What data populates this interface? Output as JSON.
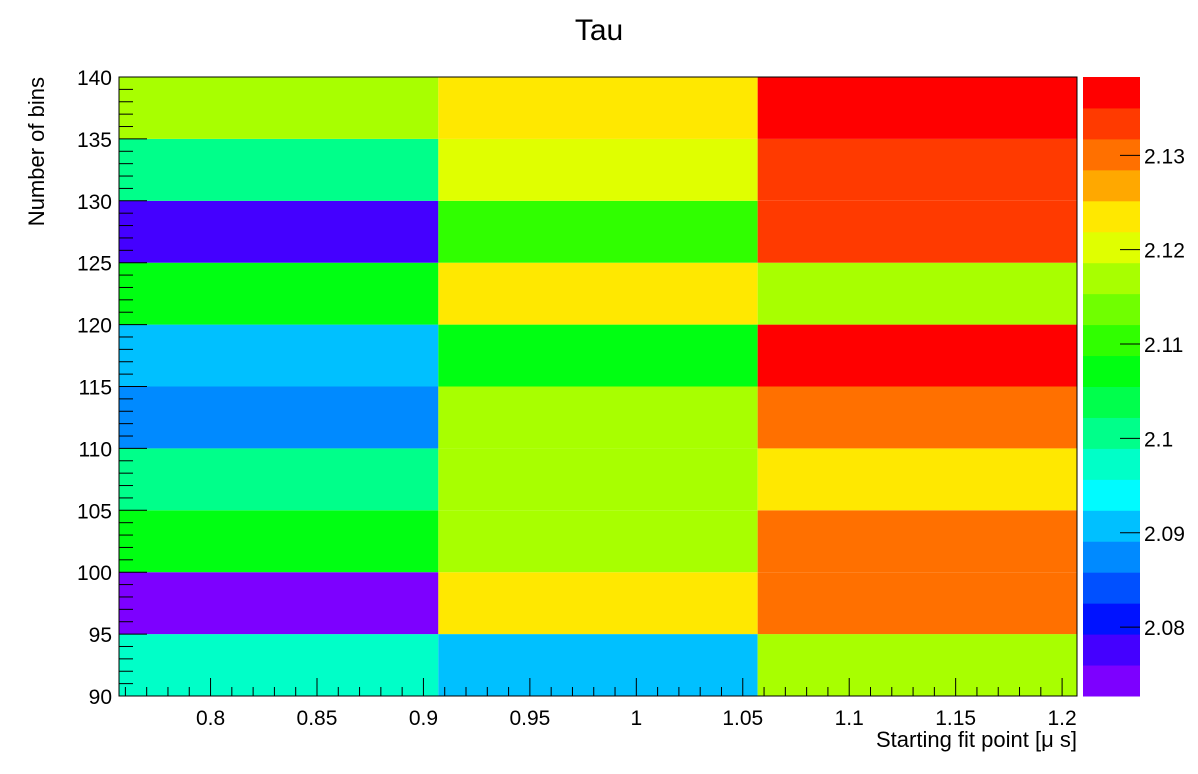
{
  "chart_data": {
    "type": "heatmap",
    "title": "Tau",
    "xlabel": "Starting fit point [μ s]",
    "ylabel": "Number of bins",
    "x_ticks": [
      "0.8",
      "0.85",
      "0.9",
      "0.95",
      "1",
      "1.05",
      "1.1",
      "1.15",
      "1.2"
    ],
    "y_ticks": [
      "90",
      "95",
      "100",
      "105",
      "110",
      "115",
      "120",
      "125",
      "130",
      "135",
      "140"
    ],
    "xlim": [
      0.757,
      1.207
    ],
    "ylim": [
      90,
      140
    ],
    "x_bin_edges": [
      0.757,
      0.907,
      1.057,
      1.207
    ],
    "y_bin_edges": [
      90,
      95,
      100,
      105,
      110,
      115,
      120,
      125,
      130,
      135,
      140
    ],
    "z_range": [
      2.0727,
      2.1383
    ],
    "z_ticks": [
      "2.08",
      "2.09",
      "2.1",
      "2.11",
      "2.12",
      "2.13"
    ],
    "z_tick_values": [
      2.08,
      2.09,
      2.1,
      2.11,
      2.12,
      2.13
    ],
    "palette": [
      "#7d00ff",
      "#4400ff",
      "#0012ff",
      "#0050ff",
      "#008aff",
      "#00c0ff",
      "#00fbff",
      "#00ffc8",
      "#00ff8a",
      "#00ff4c",
      "#00ff12",
      "#30ff00",
      "#70ff00",
      "#a8ff00",
      "#e0ff00",
      "#ffe800",
      "#ffa800",
      "#ff7000",
      "#ff3a00",
      "#ff0000"
    ],
    "cells": [
      [
        2.0965,
        2.0895,
        2.1166
      ],
      [
        2.0748,
        2.123,
        2.1296
      ],
      [
        2.1087,
        2.1157,
        2.1307
      ],
      [
        2.1007,
        2.1176,
        2.1233
      ],
      [
        2.0876,
        2.1158,
        2.1304
      ],
      [
        2.0903,
        2.1065,
        2.138
      ],
      [
        2.1057,
        2.123,
        2.118
      ],
      [
        2.0787,
        2.1117,
        2.1348
      ],
      [
        2.1008,
        2.12,
        2.1347
      ],
      [
        2.1166,
        2.123,
        2.138
      ]
    ],
    "grid": false,
    "colorbar": "right"
  }
}
